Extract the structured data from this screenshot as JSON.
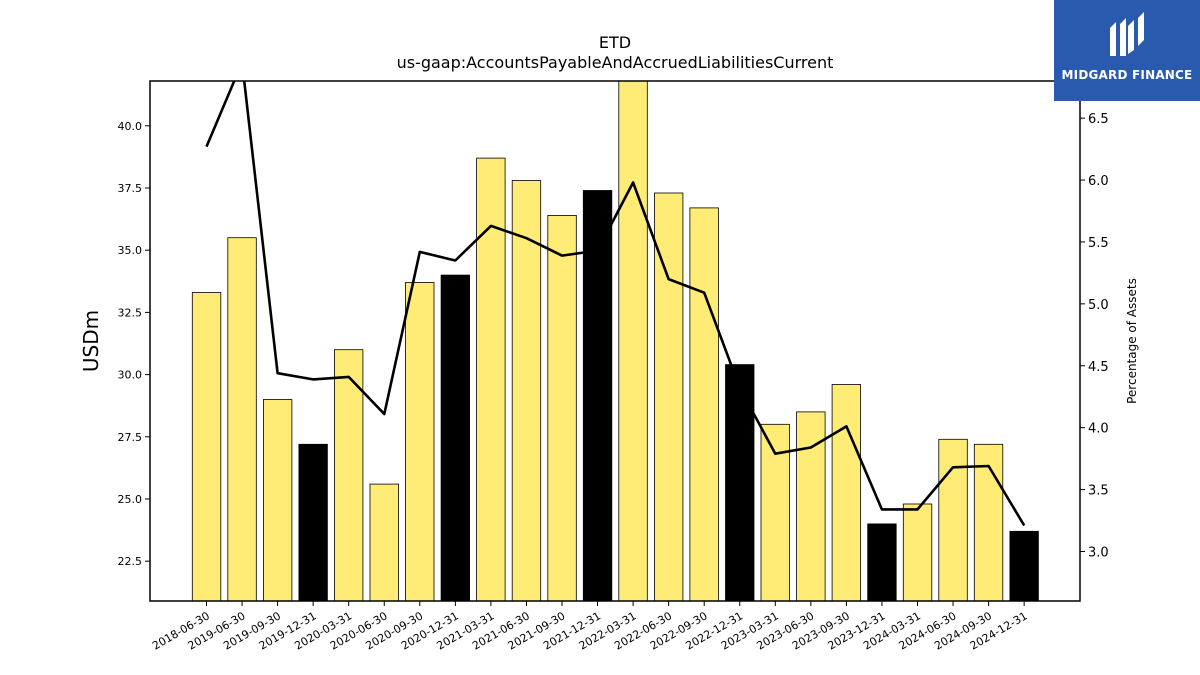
{
  "brand": {
    "name": "MIDGARD FINANCE",
    "bg_color": "#2a5aad"
  },
  "chart_data": {
    "type": "bar",
    "title": "ETD",
    "subtitle": "us-gaap:AccountsPayableAndAccruedLiabilitiesCurrent",
    "ylabel": "USDm",
    "y2label": "Percentage of Assets",
    "ylim": [
      20.9,
      41.8
    ],
    "y2lim": [
      2.6,
      6.8
    ],
    "yticks": [
      "22.5",
      "25.0",
      "27.5",
      "30.0",
      "32.5",
      "35.0",
      "37.5",
      "40.0"
    ],
    "y2ticks": [
      "3.0",
      "3.5",
      "4.0",
      "4.5",
      "5.0",
      "5.5",
      "6.0",
      "6.5"
    ],
    "categories": [
      "2018-06-30",
      "2019-06-30",
      "2019-09-30",
      "2019-12-31",
      "2020-03-31",
      "2020-06-30",
      "2020-09-30",
      "2020-12-31",
      "2021-03-31",
      "2021-06-30",
      "2021-09-30",
      "2021-12-31",
      "2022-03-31",
      "2022-06-30",
      "2022-09-30",
      "2022-12-31",
      "2023-03-31",
      "2023-06-30",
      "2023-09-30",
      "2023-12-31",
      "2024-03-31",
      "2024-06-30",
      "2024-09-30",
      "2024-12-31"
    ],
    "series": [
      {
        "kind": "bar",
        "axis": "left",
        "values": [
          33.3,
          35.5,
          29.0,
          27.2,
          31.0,
          25.6,
          33.7,
          34.0,
          38.7,
          37.8,
          36.4,
          37.4,
          42.0,
          37.3,
          36.7,
          30.4,
          28.0,
          28.5,
          29.6,
          24.0,
          24.8,
          27.4,
          27.2,
          23.7
        ],
        "highlight": [
          false,
          false,
          false,
          true,
          false,
          false,
          false,
          true,
          false,
          false,
          false,
          true,
          false,
          false,
          false,
          true,
          false,
          false,
          false,
          true,
          false,
          false,
          false,
          true
        ],
        "color": "#ffec77",
        "highlight_color": "#000000",
        "edge_color": "#000000"
      },
      {
        "kind": "line",
        "axis": "right",
        "values": [
          6.27,
          6.95,
          4.44,
          4.39,
          4.41,
          4.11,
          5.42,
          5.35,
          5.63,
          5.53,
          5.39,
          5.43,
          5.98,
          5.2,
          5.09,
          4.32,
          3.79,
          3.84,
          4.01,
          3.34,
          3.34,
          3.68,
          3.69,
          3.21
        ],
        "color": "#000000"
      }
    ]
  }
}
